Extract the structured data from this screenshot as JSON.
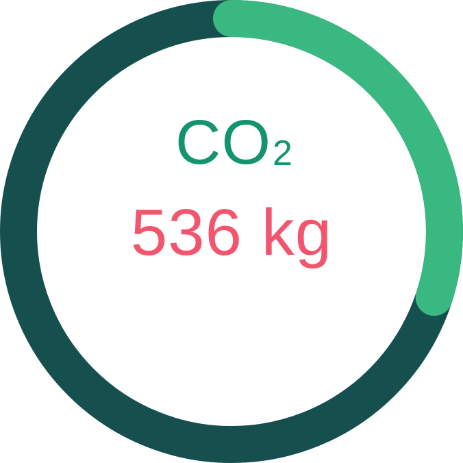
{
  "gauge": {
    "progress_fraction": 0.3,
    "track_color": "#154f4e",
    "progress_color": "#3ab882"
  },
  "metric": {
    "label_main": "CO",
    "label_subscript": "2",
    "label_color": "#13936e",
    "value": "536 kg",
    "value_color": "#f2566e"
  }
}
